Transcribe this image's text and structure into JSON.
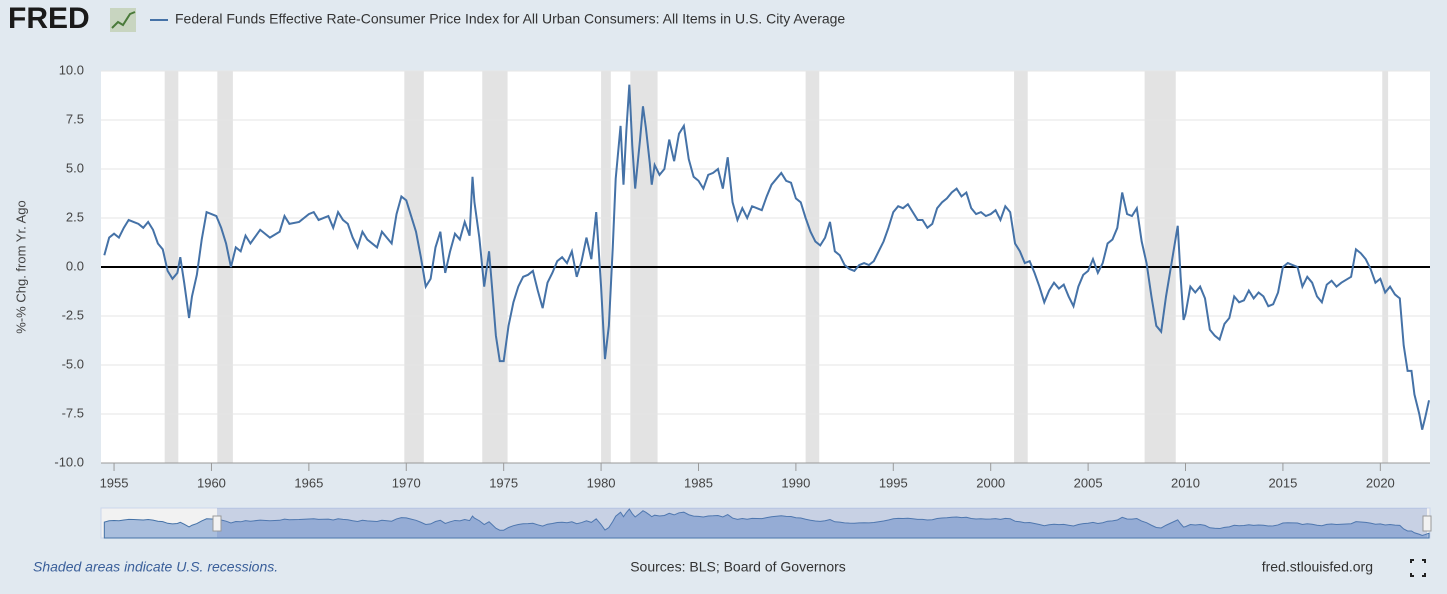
{
  "chart_data": {
    "type": "line",
    "logo": "FRED",
    "series": [
      {
        "name": "Federal Funds Effective Rate-Consumer Price Index for All Urban Consumers: All Items in U.S. City Average",
        "color": "#4572a7",
        "values": [
          0.6,
          1.5,
          1.7,
          1.5,
          2.0,
          2.4,
          2.3,
          2.2,
          2.0,
          2.3,
          1.9,
          1.2,
          0.9,
          -0.2,
          -0.6,
          -0.3,
          0.5,
          -0.8,
          -2.6,
          -1.5,
          -0.4,
          1.4,
          2.8,
          2.7,
          2.6,
          2.0,
          1.2,
          0.0,
          1.0,
          0.8,
          1.6,
          1.2,
          1.9,
          1.5,
          1.8,
          2.6,
          2.2,
          2.3,
          2.7,
          2.8,
          2.4,
          2.6,
          2.0,
          2.8,
          2.4,
          2.2,
          1.5,
          1.0,
          1.8,
          1.4,
          1.0,
          1.8,
          1.5,
          1.2,
          2.7,
          3.6,
          3.4,
          2.6,
          1.8,
          0.5,
          -1.0,
          -0.6,
          1.0,
          1.8,
          -0.3,
          0.8,
          1.7,
          1.4,
          2.3,
          1.6,
          4.6,
          3.3,
          1.5,
          -1.0,
          0.8,
          -1.0,
          -3.5,
          -4.8,
          -4.8,
          -3.0,
          -1.8,
          -1.0,
          -0.5,
          -0.4,
          -0.2,
          -1.2,
          -2.1,
          -0.8,
          -0.3,
          0.3,
          0.5,
          0.2,
          0.8,
          -0.5,
          0.3,
          1.5,
          0.4,
          2.8,
          -1.0,
          -4.7,
          -3.0,
          1.0,
          4.5,
          7.2,
          4.2,
          7.0,
          9.3,
          6.2,
          4.0,
          6.5,
          8.2,
          7.1,
          5.3,
          4.2,
          5.2,
          4.7,
          5.0,
          6.5,
          5.4,
          6.8,
          7.2,
          5.5,
          4.6,
          4.4,
          4.0,
          4.7,
          4.8,
          5.0,
          4.0,
          5.6,
          3.3,
          2.4,
          3.0,
          2.5,
          3.1,
          3.0,
          2.9,
          3.6,
          4.2,
          4.5,
          4.8,
          4.4,
          4.3,
          3.5,
          3.3,
          2.5,
          1.8,
          1.3,
          1.1,
          1.5,
          2.3,
          0.8,
          0.6,
          0.1,
          -0.1,
          -0.2,
          0.1,
          0.2,
          0.1,
          0.3,
          0.8,
          1.3,
          2.0,
          2.8,
          3.1,
          3.0,
          3.2,
          2.8,
          2.4,
          2.4,
          2.0,
          2.2,
          3.0,
          3.3,
          3.5,
          3.8,
          4.0,
          3.6,
          3.8,
          3.0,
          2.7,
          2.8,
          2.6,
          2.7,
          2.9,
          2.4,
          3.1,
          2.8,
          1.2,
          0.8,
          0.2,
          0.3,
          -0.3,
          -1.0,
          -1.8,
          -1.2,
          -0.8,
          -1.1,
          -0.9,
          -1.5,
          -2.0,
          -1.0,
          -0.4,
          -0.2,
          0.4,
          -0.3,
          0.2,
          1.2,
          1.4,
          2.0,
          3.8,
          2.7,
          2.6,
          3.0,
          1.3,
          0.2,
          -1.5,
          -3.0,
          -3.3,
          -1.5,
          0.0,
          1.5,
          2.1,
          -0.5,
          -2.7,
          -2.4,
          -1.0,
          -1.3,
          -1.0,
          -1.6,
          -3.2,
          -3.5,
          -3.7,
          -2.9,
          -2.6,
          -1.5,
          -1.8,
          -1.7,
          -1.2,
          -1.6,
          -1.3,
          -1.5,
          -2.0,
          -1.9,
          -1.3,
          0.0,
          0.2,
          0.1,
          0.0,
          -1.0,
          -0.5,
          -0.8,
          -1.5,
          -1.8,
          -0.9,
          -0.7,
          -1.0,
          -0.8,
          -0.5,
          0.9,
          0.7,
          0.4,
          -0.1,
          -0.8,
          -0.6,
          -1.3,
          -1.0,
          -1.4,
          -1.6,
          -4.0,
          -5.3,
          -5.3,
          -6.5,
          -7.5,
          -8.3,
          -7.7,
          -6.8
        ]
      }
    ],
    "x": [
      1954.5,
      1954.75,
      1955,
      1955.25,
      1955.5,
      1955.75,
      1956,
      1956.25,
      1956.5,
      1956.75,
      1957,
      1957.25,
      1957.5,
      1957.75,
      1958,
      1958.25,
      1958.4,
      1958.6,
      1958.85,
      1959,
      1959.25,
      1959.5,
      1959.75,
      1960,
      1960.25,
      1960.5,
      1960.75,
      1961,
      1961.25,
      1961.5,
      1961.75,
      1962,
      1962.5,
      1963,
      1963.5,
      1963.75,
      1964,
      1964.5,
      1965,
      1965.25,
      1965.5,
      1966,
      1966.25,
      1966.5,
      1966.75,
      1967,
      1967.25,
      1967.5,
      1967.75,
      1968,
      1968.5,
      1968.75,
      1969,
      1969.25,
      1969.5,
      1969.75,
      1970,
      1970.25,
      1970.5,
      1970.75,
      1971,
      1971.25,
      1971.5,
      1971.75,
      1972,
      1972.25,
      1972.5,
      1972.75,
      1973,
      1973.25,
      1973.4,
      1973.5,
      1973.75,
      1974,
      1974.25,
      1974.4,
      1974.6,
      1974.8,
      1975,
      1975.25,
      1975.5,
      1975.75,
      1976,
      1976.25,
      1976.5,
      1976.75,
      1977,
      1977.25,
      1977.5,
      1977.75,
      1978,
      1978.25,
      1978.5,
      1978.75,
      1979,
      1979.25,
      1979.5,
      1979.75,
      1980,
      1980.2,
      1980.4,
      1980.6,
      1980.75,
      1981,
      1981.15,
      1981.3,
      1981.45,
      1981.6,
      1981.75,
      1982,
      1982.15,
      1982.3,
      1982.5,
      1982.6,
      1982.75,
      1983,
      1983.25,
      1983.5,
      1983.75,
      1984,
      1984.25,
      1984.5,
      1984.75,
      1985,
      1985.25,
      1985.5,
      1985.75,
      1986,
      1986.25,
      1986.5,
      1986.75,
      1987,
      1987.25,
      1987.5,
      1987.75,
      1988,
      1988.25,
      1988.5,
      1988.75,
      1989,
      1989.25,
      1989.5,
      1989.75,
      1990,
      1990.25,
      1990.5,
      1990.75,
      1991,
      1991.25,
      1991.5,
      1991.75,
      1992,
      1992.25,
      1992.5,
      1992.75,
      1993,
      1993.25,
      1993.5,
      1993.75,
      1994,
      1994.25,
      1994.5,
      1994.75,
      1995,
      1995.25,
      1995.5,
      1995.75,
      1996,
      1996.25,
      1996.5,
      1996.75,
      1997,
      1997.25,
      1997.5,
      1997.75,
      1998,
      1998.25,
      1998.5,
      1998.75,
      1999,
      1999.25,
      1999.5,
      1999.75,
      2000,
      2000.25,
      2000.5,
      2000.75,
      2001,
      2001.25,
      2001.5,
      2001.75,
      2002,
      2002.25,
      2002.5,
      2002.75,
      2003,
      2003.25,
      2003.5,
      2003.75,
      2004,
      2004.25,
      2004.5,
      2004.75,
      2005,
      2005.25,
      2005.5,
      2005.75,
      2006,
      2006.25,
      2006.5,
      2006.75,
      2007,
      2007.25,
      2007.5,
      2007.75,
      2008,
      2008.25,
      2008.5,
      2008.75,
      2009,
      2009.25,
      2009.5,
      2009.6,
      2009.75,
      2009.9,
      2010,
      2010.25,
      2010.5,
      2010.75,
      2011,
      2011.25,
      2011.5,
      2011.75,
      2012,
      2012.25,
      2012.5,
      2012.75,
      2013,
      2013.25,
      2013.5,
      2013.75,
      2014,
      2014.25,
      2014.5,
      2014.75,
      2015,
      2015.25,
      2015.5,
      2015.75,
      2016,
      2016.25,
      2016.5,
      2016.75,
      2017,
      2017.25,
      2017.5,
      2017.75,
      2018,
      2018.5,
      2018.75,
      2019,
      2019.25,
      2019.5,
      2019.75,
      2020,
      2020.25,
      2020.5,
      2020.75,
      2021,
      2021.2,
      2021.4,
      2021.6,
      2021.75,
      2022,
      2022.15,
      2022.3,
      2022.5
    ],
    "recessions": [
      [
        1957.6,
        1958.3
      ],
      [
        1960.3,
        1961.1
      ],
      [
        1969.9,
        1970.9
      ],
      [
        1973.9,
        1975.2
      ],
      [
        1980.0,
        1980.5
      ],
      [
        1981.5,
        1982.9
      ],
      [
        1990.5,
        1991.2
      ],
      [
        2001.2,
        2001.9
      ],
      [
        2007.9,
        2009.5
      ],
      [
        2020.1,
        2020.4
      ]
    ],
    "xlim": [
      1954.33,
      2022.55
    ],
    "xticks": [
      1955,
      1960,
      1965,
      1970,
      1975,
      1980,
      1985,
      1990,
      1995,
      2000,
      2005,
      2010,
      2015,
      2020
    ],
    "ylim": [
      -10,
      10
    ],
    "yticks": [
      {
        "value": -10,
        "label": "-10.0"
      },
      {
        "value": -7.5,
        "label": "-7.5"
      },
      {
        "value": -5,
        "label": "-5.0"
      },
      {
        "value": -2.5,
        "label": "-2.5"
      },
      {
        "value": 0,
        "label": "0.0"
      },
      {
        "value": 2.5,
        "label": "2.5"
      },
      {
        "value": 5,
        "label": "5.0"
      },
      {
        "value": 7.5,
        "label": "7.5"
      },
      {
        "value": 10,
        "label": "10.0"
      }
    ],
    "ylabel": "%-% Chg. from Yr. Ago",
    "grid": true,
    "note": "Shaded areas indicate U.S. recessions.",
    "source": "Sources: BLS; Board of Governors",
    "site": "fred.stlouisfed.org"
  }
}
